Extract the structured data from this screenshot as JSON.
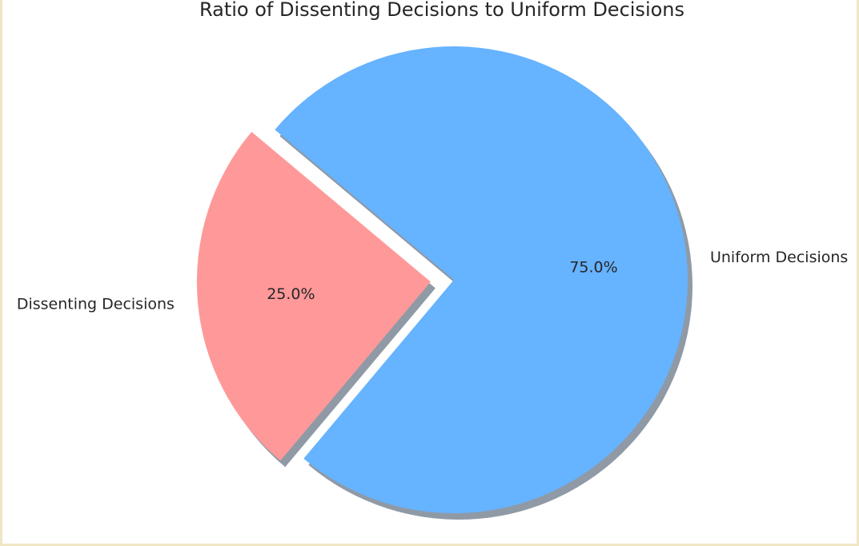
{
  "chart_data": {
    "type": "pie",
    "title": "Ratio of Dissenting Decisions to Uniform Decisions",
    "slices": [
      {
        "label": "Dissenting Decisions",
        "value": 25.0,
        "pct_label": "25.0%",
        "color": "#ff9999",
        "exploded": true
      },
      {
        "label": "Uniform Decisions",
        "value": 75.0,
        "pct_label": "75.0%",
        "color": "#66b3ff",
        "exploded": false
      }
    ],
    "start_angle": 140,
    "shadow": true,
    "shadow_color": "#8f9aa6"
  }
}
